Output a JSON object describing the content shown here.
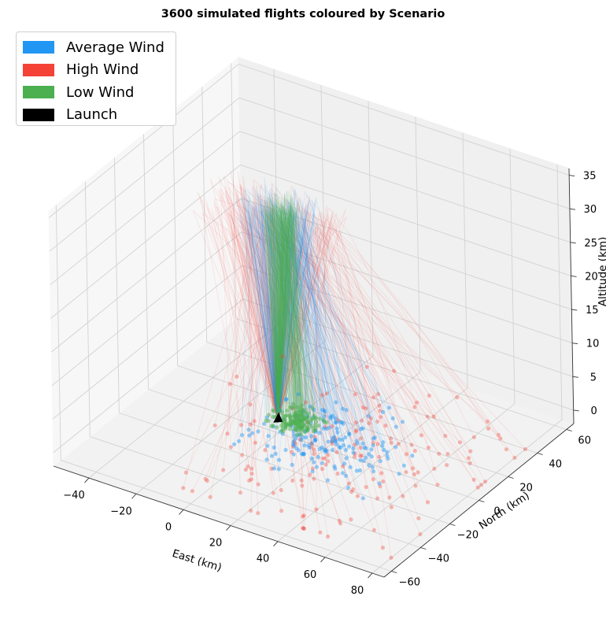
{
  "chart_data": {
    "type": "line",
    "title": "3600 simulated flights coloured by Scenario",
    "xlabel": "East (km)",
    "ylabel": "North (km)",
    "zlabel": "Altitude (km)",
    "xticks": [
      -40,
      -20,
      0,
      20,
      40,
      60,
      80
    ],
    "yticks": [
      -60,
      -40,
      -20,
      0,
      20,
      40,
      60
    ],
    "zticks": [
      0,
      5,
      10,
      15,
      20,
      25,
      30,
      35
    ],
    "xlim": [
      -55,
      85
    ],
    "ylim": [
      -65,
      65
    ],
    "zlim": [
      -2,
      36
    ],
    "grid": true,
    "legend_position": "top-left",
    "launch": {
      "x": 0,
      "y": 0,
      "z": 0
    },
    "series": [
      {
        "name": "Average Wind",
        "color": "#2196F3",
        "burst_altitude_range": [
          29,
          33
        ],
        "landing_x_range": [
          -5,
          60
        ],
        "landing_y_range": [
          -30,
          40
        ]
      },
      {
        "name": "High Wind",
        "color": "#F44336",
        "burst_altitude_range": [
          28,
          32
        ],
        "landing_x_range": [
          -45,
          85
        ],
        "landing_y_range": [
          -60,
          60
        ]
      },
      {
        "name": "Low Wind",
        "color": "#4CAF50",
        "burst_altitude_range": [
          30,
          33
        ],
        "landing_x_range": [
          -5,
          25
        ],
        "landing_y_range": [
          -10,
          20
        ]
      }
    ],
    "legend": [
      {
        "label": "Average Wind",
        "color": "#2196F3"
      },
      {
        "label": "High Wind",
        "color": "#F44336"
      },
      {
        "label": "Low Wind",
        "color": "#4CAF50"
      },
      {
        "label": "Launch",
        "color": "#000000"
      }
    ]
  }
}
